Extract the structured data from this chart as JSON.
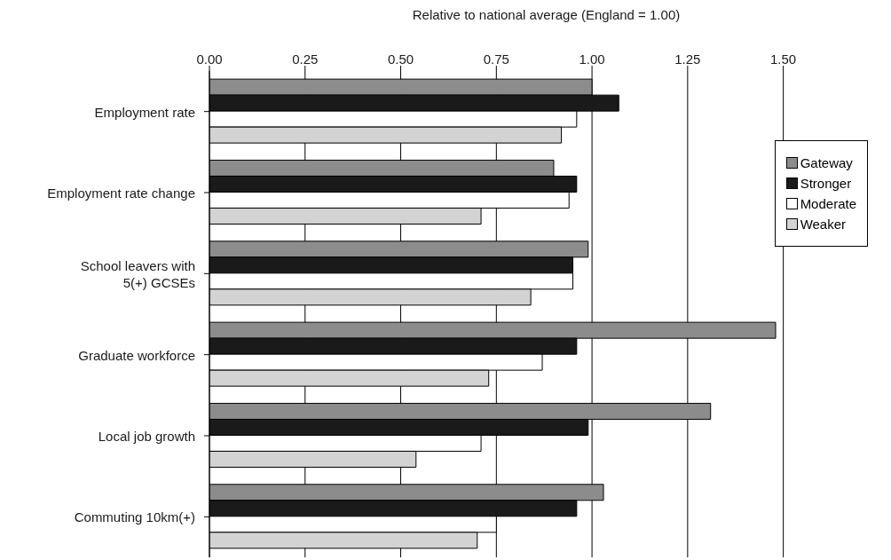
{
  "chart_data": {
    "type": "bar",
    "orientation": "horizontal",
    "xlabel": "Relative to national average (England = 1.00)",
    "categories": [
      "Employment rate",
      "Employment rate change",
      "School leavers with 5(+) GCSEs",
      "Graduate workforce",
      "Local job growth",
      "Commuting 10km(+)"
    ],
    "series": [
      {
        "name": "Gateway",
        "color": "#8c8c8c",
        "values": [
          1.0,
          0.9,
          0.99,
          1.48,
          1.31,
          1.03
        ]
      },
      {
        "name": "Stronger",
        "color": "#1a1a1a",
        "values": [
          1.07,
          0.96,
          0.95,
          0.96,
          0.99,
          0.96
        ]
      },
      {
        "name": "Moderate",
        "color": "#ffffff",
        "values": [
          0.96,
          0.94,
          0.95,
          0.87,
          0.71,
          0.75
        ]
      },
      {
        "name": "Weaker",
        "color": "#d3d3d3",
        "values": [
          0.92,
          0.71,
          0.84,
          0.73,
          0.54,
          0.7
        ]
      }
    ],
    "xlim": [
      0,
      1.5
    ],
    "xticks": [
      {
        "value": 0,
        "label": "0.00"
      },
      {
        "value": 0.25,
        "label": "0.25"
      },
      {
        "value": 0.5,
        "label": "0.50"
      },
      {
        "value": 0.75,
        "label": "0.75"
      },
      {
        "value": 1,
        "label": "1.00"
      },
      {
        "value": 1.25,
        "label": "1.25"
      },
      {
        "value": 1.5,
        "label": "1.50"
      }
    ],
    "grid": "x",
    "legend": "right"
  }
}
